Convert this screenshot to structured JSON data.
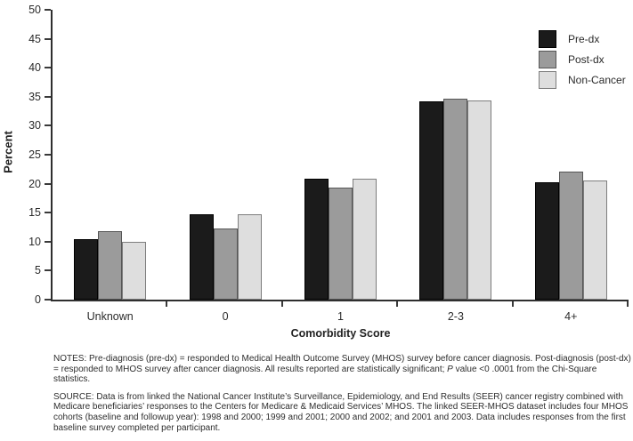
{
  "chart_data": {
    "type": "bar",
    "title": "",
    "categories": [
      "Unknown",
      "0",
      "1",
      "2-3",
      "4+"
    ],
    "series": [
      {
        "name": "Pre-dx",
        "color": "#1b1b1b",
        "border": "#000000",
        "values": [
          10.4,
          14.7,
          20.8,
          34.2,
          20.3
        ]
      },
      {
        "name": "Post-dx",
        "color": "#9b9b9b",
        "border": "#555555",
        "values": [
          11.8,
          12.2,
          19.4,
          34.7,
          22.1
        ]
      },
      {
        "name": "Non-Cancer",
        "color": "#dedede",
        "border": "#7d7d7d",
        "values": [
          10.0,
          14.7,
          20.9,
          34.4,
          20.5
        ]
      }
    ],
    "xlabel": "Comorbidity Score",
    "ylabel": "Percent",
    "ylim": [
      0,
      50
    ],
    "ytick_step": 5,
    "grid": false,
    "legend_position": "top-right",
    "axis_color": "#2e2e2e"
  },
  "footnotes": {
    "notes_part1": "NOTES: Pre-diagnosis (pre-dx) = responded to Medical Health Outcome Survey (MHOS) survey before cancer diagnosis. Post-diagnosis (post-dx) = responded to MHOS survey after cancer diagnosis. All results reported are statistically significant; ",
    "notes_p_italic": "P",
    "notes_part2": " value <0 .0001 from the Chi-Square statistics.",
    "source_text": "SOURCE: Data is from linked the National Cancer Institute’s Surveillance, Epidemiology, and End Results (SEER) cancer registry combined with Medicare beneficiaries’ responses to the Centers for Medicare & Medicaid Services’ MHOS. The linked SEER-MHOS dataset includes four MHOS cohorts (baseline and followup year): 1998 and 2000; 1999 and 2001; 2000 and 2002; and 2001 and 2003. Data includes responses from the first baseline survey completed per participant."
  }
}
